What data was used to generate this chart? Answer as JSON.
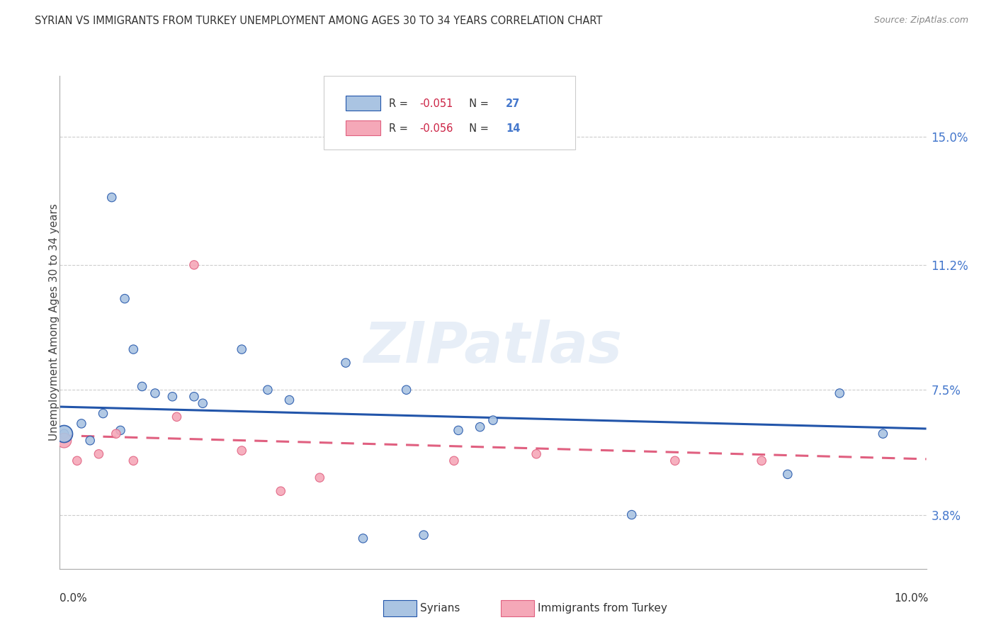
{
  "title": "SYRIAN VS IMMIGRANTS FROM TURKEY UNEMPLOYMENT AMONG AGES 30 TO 34 YEARS CORRELATION CHART",
  "source": "Source: ZipAtlas.com",
  "ylabel": "Unemployment Among Ages 30 to 34 years",
  "ytick_labels": [
    "3.8%",
    "7.5%",
    "11.2%",
    "15.0%"
  ],
  "ytick_values": [
    3.8,
    7.5,
    11.2,
    15.0
  ],
  "xlim": [
    0.0,
    10.0
  ],
  "ylim": [
    2.2,
    16.8
  ],
  "legend1_label_r": "R = ",
  "legend1_r_val": "-0.051",
  "legend1_label_n": "  N = ",
  "legend1_n_val": "27",
  "legend2_r_val": "-0.056",
  "legend2_n_val": "14",
  "syrians_color": "#aac4e2",
  "turkey_color": "#f5a8b8",
  "line_syrian_color": "#2255aa",
  "line_turkey_color": "#e06080",
  "background_color": "#ffffff",
  "watermark": "ZIPatlas",
  "syrians_x": [
    0.05,
    0.25,
    0.35,
    0.5,
    0.6,
    0.7,
    0.75,
    0.85,
    0.95,
    1.1,
    1.3,
    1.55,
    1.65,
    2.1,
    2.4,
    2.65,
    3.3,
    3.5,
    4.0,
    4.6,
    5.0,
    6.6,
    8.4,
    9.0,
    9.5,
    4.2,
    4.85
  ],
  "syrians_y": [
    6.2,
    6.5,
    6.0,
    6.8,
    13.2,
    6.3,
    10.2,
    8.7,
    7.6,
    7.4,
    7.3,
    7.3,
    7.1,
    8.7,
    7.5,
    7.2,
    8.3,
    3.1,
    7.5,
    6.3,
    6.6,
    3.8,
    5.0,
    7.4,
    6.2,
    3.2,
    6.4
  ],
  "syrians_size": [
    80,
    80,
    80,
    80,
    80,
    80,
    80,
    80,
    80,
    80,
    80,
    80,
    80,
    80,
    80,
    80,
    80,
    80,
    80,
    80,
    80,
    80,
    80,
    80,
    80,
    80,
    80
  ],
  "turkey_x": [
    0.05,
    0.2,
    0.45,
    0.65,
    0.85,
    1.35,
    1.55,
    2.1,
    2.55,
    3.0,
    4.55,
    5.5,
    7.1,
    8.1
  ],
  "turkey_y": [
    6.0,
    5.4,
    5.6,
    6.2,
    5.4,
    6.7,
    11.2,
    5.7,
    4.5,
    4.9,
    5.4,
    5.6,
    5.4,
    5.4
  ],
  "turkey_size": [
    220,
    80,
    80,
    80,
    80,
    80,
    80,
    80,
    80,
    80,
    80,
    80,
    80,
    80
  ],
  "big_syrian_x": 0.05,
  "big_syrian_y": 6.2,
  "syrian_line_x": [
    0.0,
    10.0
  ],
  "syrian_line_y": [
    7.0,
    6.35
  ],
  "turkey_line_x": [
    0.0,
    10.0
  ],
  "turkey_line_y": [
    6.15,
    5.45
  ]
}
